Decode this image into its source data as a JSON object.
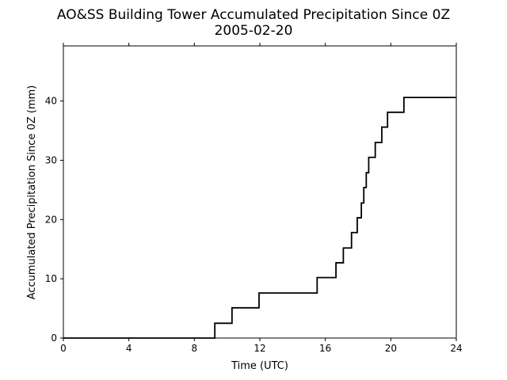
{
  "chart_data": {
    "type": "line",
    "title": "AO&SS Building Tower Accumulated Precipitation Since 0Z",
    "subtitle": "2005-02-20",
    "xlabel": "Time (UTC)",
    "ylabel": "Accumulated Precipitation Since 0Z (mm)",
    "xlim": [
      0,
      24
    ],
    "ylim": [
      0,
      49.3
    ],
    "xticks": [
      0,
      4,
      8,
      12,
      16,
      20,
      24
    ],
    "yticks": [
      0,
      10,
      20,
      30,
      40
    ],
    "grid": false,
    "line_color": "#000000",
    "step": "post",
    "series": [
      {
        "x": [
          0,
          9.25,
          10.3,
          11.95,
          15.5,
          16.65,
          17.1,
          17.6,
          17.95,
          18.2,
          18.35,
          18.5,
          18.65,
          19.05,
          19.45,
          19.8,
          20.8,
          24
        ],
        "y": [
          0,
          2.5,
          5.1,
          7.6,
          10.2,
          12.7,
          15.2,
          17.8,
          20.3,
          22.8,
          25.4,
          27.9,
          30.5,
          33.0,
          35.6,
          38.1,
          40.6,
          40.6
        ]
      }
    ]
  }
}
